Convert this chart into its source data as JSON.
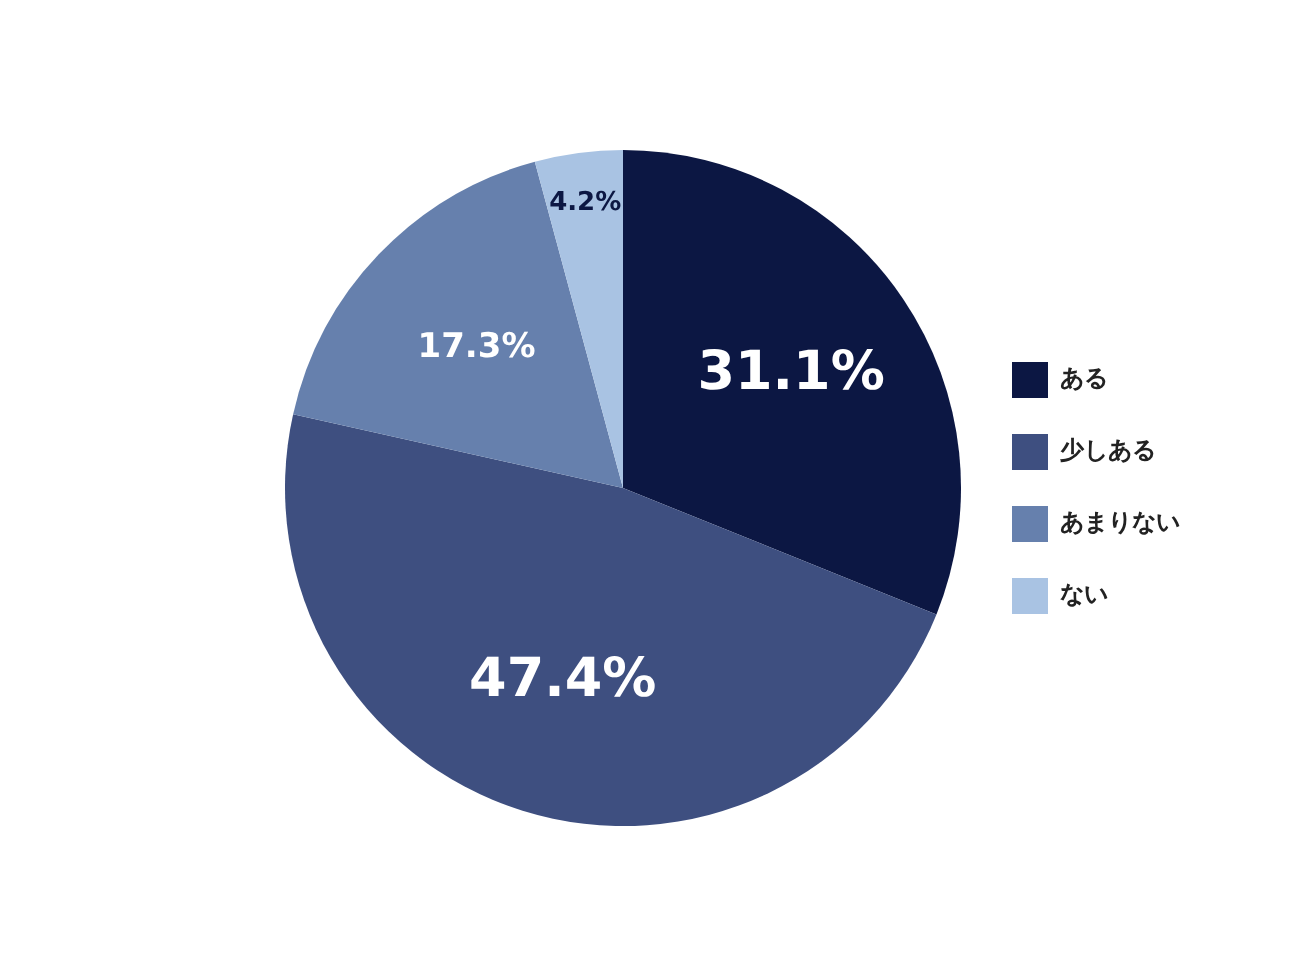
{
  "chart_data": {
    "type": "pie",
    "categories": [
      "ある",
      "少しある",
      "あまりない",
      "ない"
    ],
    "values": [
      31.1,
      47.4,
      17.3,
      4.2
    ],
    "colors": [
      "#0c1743",
      "#3e4f80",
      "#6680ad",
      "#a9c3e3"
    ],
    "value_labels": [
      "31.1%",
      "47.4%",
      "17.3%",
      "4.2%"
    ],
    "legend": "right"
  }
}
